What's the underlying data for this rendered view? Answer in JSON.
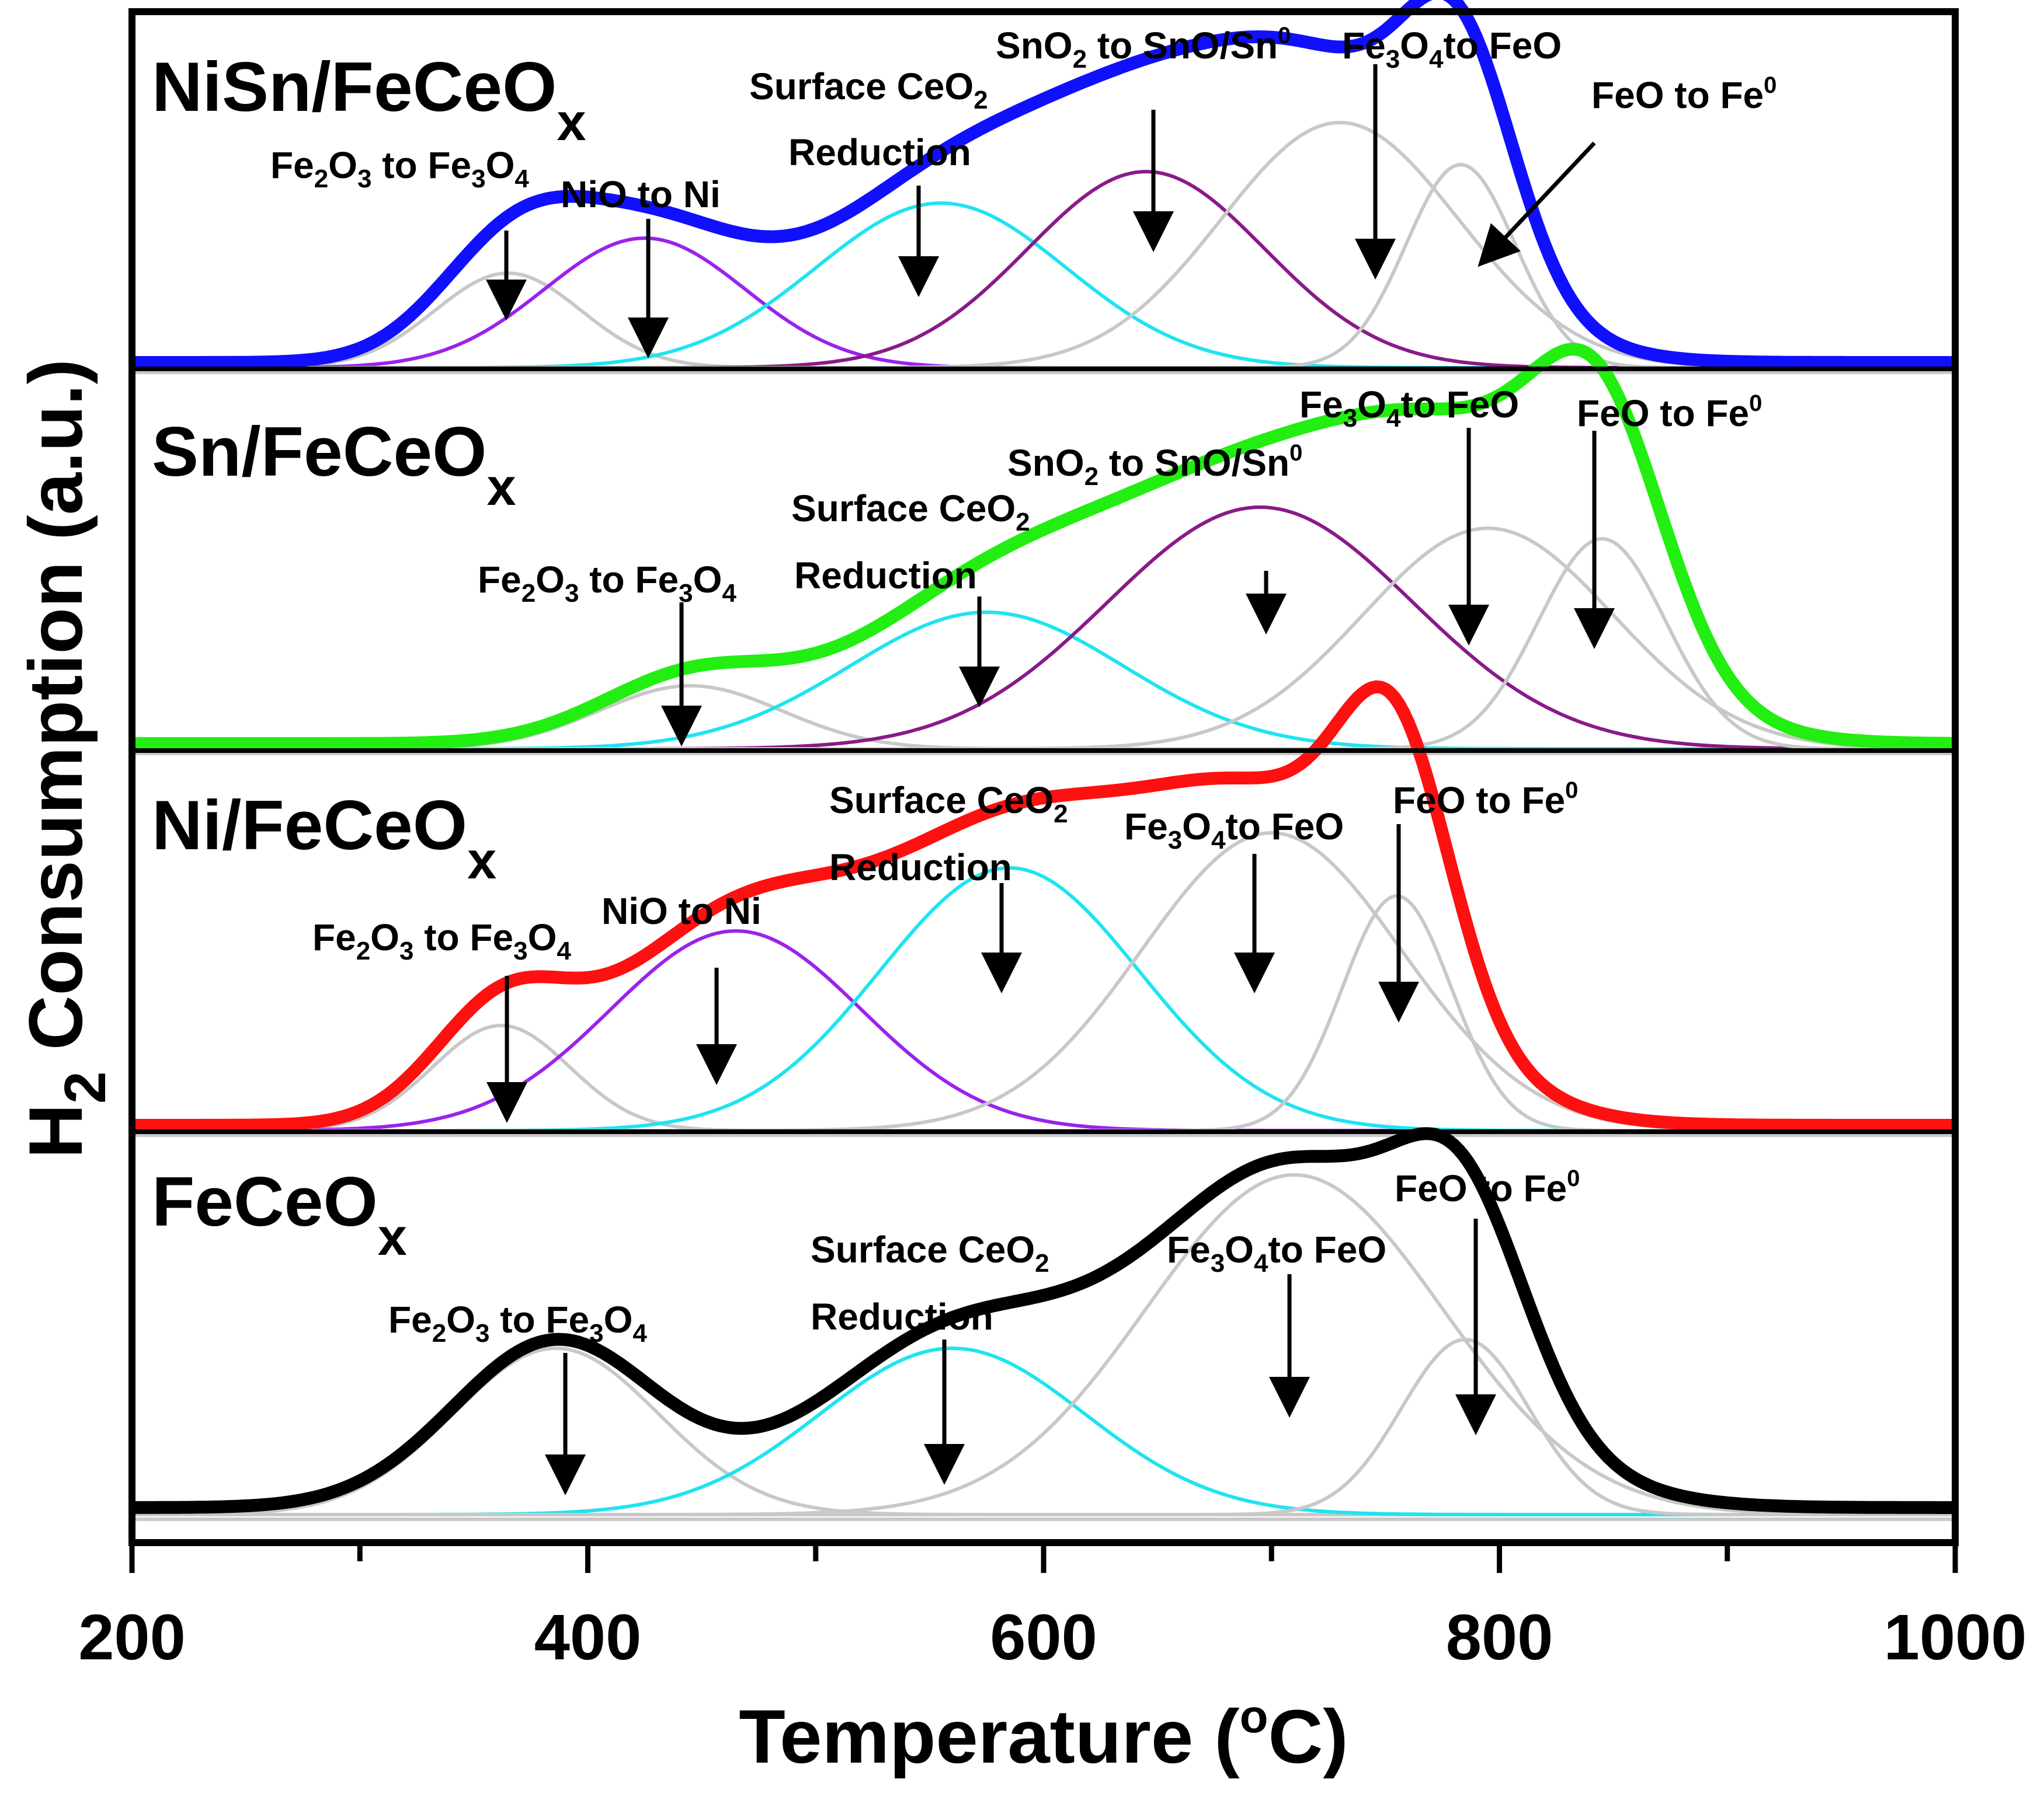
{
  "chart_data": {
    "type": "line",
    "stacked_panels": true,
    "xlabel": "Temperature (°C)",
    "xlabel_parts": {
      "pre": "Temperature (",
      "sup": "o",
      "post": "C)"
    },
    "ylabel": "H2 Consumption (a.u.)",
    "ylabel_parts": {
      "pre": "H",
      "sub": "2",
      "post": " Consumption (a.u.)"
    },
    "xlim": [
      200,
      1000
    ],
    "xticks": [
      "200",
      "400",
      "600",
      "800",
      "1000"
    ],
    "colors": {
      "nisn": "#1010ff",
      "sn": "#22ee11",
      "ni": "#ff1010",
      "fece": "#000000",
      "fe_peaks": "#c8c8c8",
      "ceo2": "#1ee4f0",
      "nio": "#9a22ee",
      "sno2": "#8a1a88",
      "arrow": "#000000"
    },
    "panels": [
      {
        "id": "nisn",
        "label": "NiSn/FeCeO",
        "label_sub": "x",
        "color": "#1010ff",
        "baseline": 0.015,
        "peaks": [
          {
            "name": "Fe2O3 to Fe3O4",
            "center": 365,
            "height": 0.27,
            "width": 32,
            "color": "#c8c8c8"
          },
          {
            "name": "NiO to Ni",
            "center": 425,
            "height": 0.37,
            "width": 44,
            "color": "#9a22ee"
          },
          {
            "name": "Surface CeO2 Reduction",
            "center": 555,
            "height": 0.47,
            "width": 55,
            "color": "#1ee4f0"
          },
          {
            "name": "SnO2 to SnO/Sn0",
            "center": 645,
            "height": 0.56,
            "width": 52,
            "color": "#8a1a88"
          },
          {
            "name": "Fe3O4 to FeO",
            "center": 730,
            "height": 0.7,
            "width": 52,
            "color": "#c8c8c8"
          },
          {
            "name": "FeO to Fe0",
            "center": 783,
            "height": 0.58,
            "width": 24,
            "color": "#c8c8c8"
          }
        ],
        "annotations": [
          {
            "id": "nisn-a1",
            "parts": [
              [
                "Fe",
                ""
              ],
              [
                "2",
                "sub"
              ],
              [
                "O",
                ""
              ],
              [
                "3",
                "sub"
              ],
              [
                " to Fe",
                ""
              ],
              [
                "3",
                "sub"
              ],
              [
                "O",
                ""
              ],
              [
                "4",
                "sub"
              ]
            ],
            "text": "Fe2O3 to Fe3O4"
          },
          {
            "id": "nisn-a2",
            "parts": [
              [
                "NiO to Ni",
                ""
              ]
            ],
            "text": "NiO to Ni"
          },
          {
            "id": "nisn-a3",
            "parts": [
              [
                "Surface CeO",
                ""
              ],
              [
                "2",
                "sub"
              ]
            ],
            "text": "Surface CeO2"
          },
          {
            "id": "nisn-a3b",
            "parts": [
              [
                "Reduction",
                ""
              ]
            ],
            "text": "Reduction"
          },
          {
            "id": "nisn-a4",
            "parts": [
              [
                "SnO",
                ""
              ],
              [
                "2",
                "sub"
              ],
              [
                " to SnO/Sn",
                ""
              ],
              [
                "0",
                "sup"
              ]
            ],
            "text": "SnO2 to SnO/Sn0"
          },
          {
            "id": "nisn-a5",
            "parts": [
              [
                "Fe",
                ""
              ],
              [
                "3",
                "sub"
              ],
              [
                "O",
                ""
              ],
              [
                "4",
                "sub"
              ],
              [
                "to FeO",
                ""
              ]
            ],
            "text": "Fe3O4to FeO"
          },
          {
            "id": "nisn-a6",
            "parts": [
              [
                "FeO to Fe",
                ""
              ],
              [
                "0",
                "sup"
              ]
            ],
            "text": "FeO to Fe0"
          }
        ]
      },
      {
        "id": "sn",
        "label": "Sn/FeCeO",
        "label_sub": "x",
        "color": "#22ee11",
        "baseline": 0.015,
        "peaks": [
          {
            "name": "Fe2O3 to Fe3O4",
            "center": 445,
            "height": 0.18,
            "width": 40,
            "color": "#c8c8c8"
          },
          {
            "name": "Surface CeO2 Reduction",
            "center": 575,
            "height": 0.39,
            "width": 60,
            "color": "#1ee4f0"
          },
          {
            "name": "SnO2 to SnO/Sn0",
            "center": 695,
            "height": 0.69,
            "width": 67,
            "color": "#8a1a88"
          },
          {
            "name": "Fe3O4 to FeO",
            "center": 795,
            "height": 0.63,
            "width": 55,
            "color": "#c8c8c8"
          },
          {
            "name": "FeO to Fe0",
            "center": 845,
            "height": 0.6,
            "width": 28,
            "color": "#c8c8c8"
          }
        ],
        "annotations": [
          {
            "id": "sn-a1",
            "parts": [
              [
                "Fe",
                ""
              ],
              [
                "2",
                "sub"
              ],
              [
                "O",
                ""
              ],
              [
                "3",
                "sub"
              ],
              [
                " to Fe",
                ""
              ],
              [
                "3",
                "sub"
              ],
              [
                "O",
                ""
              ],
              [
                "4",
                "sub"
              ]
            ],
            "text": "Fe2O3 to Fe3O4"
          },
          {
            "id": "sn-a2",
            "parts": [
              [
                "Surface CeO",
                ""
              ],
              [
                "2",
                "sub"
              ]
            ],
            "text": "Surface CeO2"
          },
          {
            "id": "sn-a2b",
            "parts": [
              [
                "Reduction",
                ""
              ]
            ],
            "text": "Reduction"
          },
          {
            "id": "sn-a3",
            "parts": [
              [
                "SnO",
                ""
              ],
              [
                "2",
                "sub"
              ],
              [
                " to SnO/Sn",
                ""
              ],
              [
                "0",
                "sup"
              ]
            ],
            "text": "SnO2 to SnO/Sn0"
          },
          {
            "id": "sn-a4",
            "parts": [
              [
                "Fe",
                ""
              ],
              [
                "3",
                "sub"
              ],
              [
                "O",
                ""
              ],
              [
                "4",
                "sub"
              ],
              [
                "to FeO",
                ""
              ]
            ],
            "text": "Fe3O4to FeO"
          },
          {
            "id": "sn-a5",
            "parts": [
              [
                "FeO to Fe",
                ""
              ],
              [
                "0",
                "sup"
              ]
            ],
            "text": "FeO to Fe0"
          }
        ]
      },
      {
        "id": "ni",
        "label": "Ni/FeCeO",
        "label_sub": "x",
        "color": "#ff1010",
        "baseline": 0.015,
        "peaks": [
          {
            "name": "Fe2O3 to Fe3O4",
            "center": 362,
            "height": 0.3,
            "width": 30,
            "color": "#c8c8c8"
          },
          {
            "name": "NiO to Ni",
            "center": 465,
            "height": 0.57,
            "width": 55,
            "color": "#9a22ee"
          },
          {
            "name": "Surface CeO2 Reduction",
            "center": 585,
            "height": 0.75,
            "width": 57,
            "color": "#1ee4f0"
          },
          {
            "name": "Fe3O4 to FeO",
            "center": 700,
            "height": 0.85,
            "width": 57,
            "color": "#c8c8c8"
          },
          {
            "name": "FeO to Fe0",
            "center": 755,
            "height": 0.67,
            "width": 24,
            "color": "#c8c8c8"
          }
        ],
        "annotations": [
          {
            "id": "ni-a1",
            "parts": [
              [
                "Fe",
                ""
              ],
              [
                "2",
                "sub"
              ],
              [
                "O",
                ""
              ],
              [
                "3",
                "sub"
              ],
              [
                " to Fe",
                ""
              ],
              [
                "3",
                "sub"
              ],
              [
                "O",
                ""
              ],
              [
                "4",
                "sub"
              ]
            ],
            "text": "Fe2O3 to Fe3O4"
          },
          {
            "id": "ni-a2",
            "parts": [
              [
                "NiO to Ni",
                ""
              ]
            ],
            "text": "NiO to Ni"
          },
          {
            "id": "ni-a3",
            "parts": [
              [
                "Surface CeO",
                ""
              ],
              [
                "2",
                "sub"
              ]
            ],
            "text": "Surface CeO2"
          },
          {
            "id": "ni-a3b",
            "parts": [
              [
                "Reduction",
                ""
              ]
            ],
            "text": "Reduction"
          },
          {
            "id": "ni-a4",
            "parts": [
              [
                "Fe",
                ""
              ],
              [
                "3",
                "sub"
              ],
              [
                "O",
                ""
              ],
              [
                "4",
                "sub"
              ],
              [
                "to FeO",
                ""
              ]
            ],
            "text": "Fe3O4to FeO"
          },
          {
            "id": "ni-a5",
            "parts": [
              [
                "FeO to Fe",
                ""
              ],
              [
                "0",
                "sup"
              ]
            ],
            "text": "FeO to Fe0"
          }
        ]
      },
      {
        "id": "fece",
        "label": "FeCeO",
        "label_sub": "x",
        "color": "#000000",
        "baseline": 0.02,
        "peaks": [
          {
            "name": "Fe2O3 to Fe3O4",
            "center": 386,
            "height": 0.475,
            "width": 45,
            "color": "#c8c8c8"
          },
          {
            "name": "Surface CeO2 Reduction",
            "center": 560,
            "height": 0.475,
            "width": 58,
            "color": "#1ee4f0"
          },
          {
            "name": "Fe3O4 to FeO",
            "center": 710,
            "height": 0.97,
            "width": 65,
            "color": "#c8c8c8"
          },
          {
            "name": "FeO to Fe0",
            "center": 785,
            "height": 0.5,
            "width": 28,
            "color": "#c8c8c8"
          }
        ],
        "annotations": [
          {
            "id": "fece-a1",
            "parts": [
              [
                "Fe",
                ""
              ],
              [
                "2",
                "sub"
              ],
              [
                "O",
                ""
              ],
              [
                "3",
                "sub"
              ],
              [
                " to Fe",
                ""
              ],
              [
                "3",
                "sub"
              ],
              [
                "O",
                ""
              ],
              [
                "4",
                "sub"
              ]
            ],
            "text": "Fe2O3 to Fe3O4"
          },
          {
            "id": "fece-a2",
            "parts": [
              [
                "Surface CeO",
                ""
              ],
              [
                "2",
                "sub"
              ]
            ],
            "text": "Surface CeO2"
          },
          {
            "id": "fece-a2b",
            "parts": [
              [
                "Reduction",
                ""
              ]
            ],
            "text": "Reduction"
          },
          {
            "id": "fece-a3",
            "parts": [
              [
                "Fe",
                ""
              ],
              [
                "3",
                "sub"
              ],
              [
                "O",
                ""
              ],
              [
                "4",
                "sub"
              ],
              [
                "to FeO",
                ""
              ]
            ],
            "text": "Fe3O4to FeO"
          },
          {
            "id": "fece-a4",
            "parts": [
              [
                "FeO to Fe",
                ""
              ],
              [
                "0",
                "sup"
              ]
            ],
            "text": "FeO to Fe0"
          }
        ]
      }
    ]
  }
}
